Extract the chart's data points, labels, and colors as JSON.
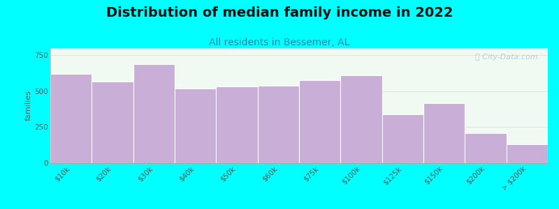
{
  "title": "Distribution of median family income in 2022",
  "subtitle": "All residents in Bessemer, AL",
  "ylabel": "families",
  "categories": [
    "$10k",
    "$20k",
    "$30k",
    "$40k",
    "$50k",
    "$60k",
    "$75k",
    "$100k",
    "$125k",
    "$150k",
    "$200k",
    "> $200k"
  ],
  "values": [
    620,
    565,
    690,
    520,
    535,
    540,
    575,
    610,
    340,
    415,
    210,
    130
  ],
  "bar_color": "#c9afd8",
  "bar_edge_color": "#ffffff",
  "background_color": "#00ffff",
  "plot_bg_color": "#f0faf2",
  "ylim": [
    0,
    800
  ],
  "yticks": [
    0,
    250,
    500,
    750
  ],
  "title_fontsize": 14,
  "subtitle_fontsize": 10,
  "ylabel_fontsize": 8,
  "tick_fontsize": 7.5,
  "watermark_text": "ⓘ City-Data.com",
  "watermark_color": "#aac8d0"
}
